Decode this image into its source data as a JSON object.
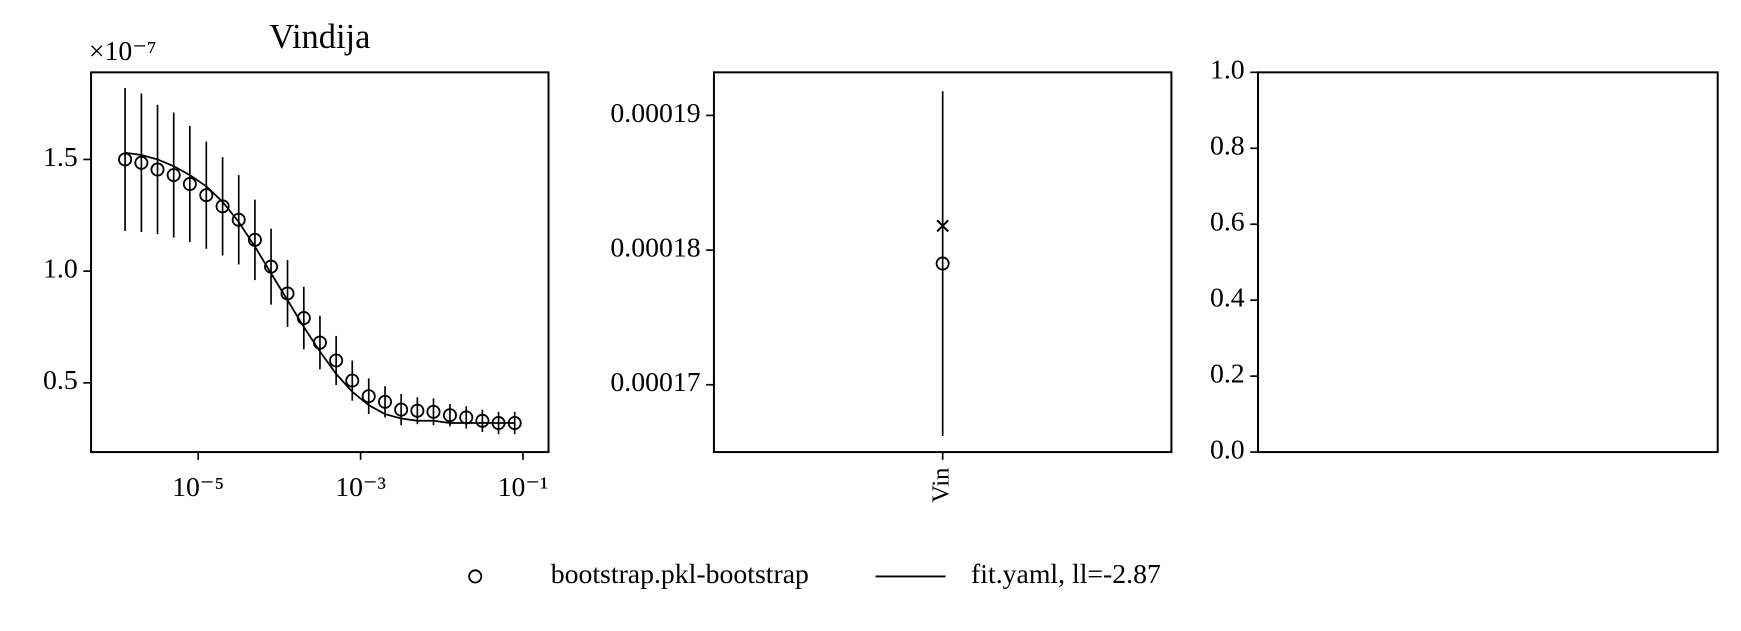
{
  "chart_data": [
    {
      "type": "line",
      "title": "Vindija",
      "offset_label": "×10⁻⁷",
      "xscale": "log",
      "x": [
        1.26e-06,
        2e-06,
        3.16e-06,
        5e-06,
        7.9e-06,
        1.26e-05,
        2e-05,
        3.16e-05,
        5e-05,
        7.9e-05,
        0.000126,
        0.0002,
        0.000316,
        0.0005,
        0.00079,
        0.00126,
        0.002,
        0.00316,
        0.005,
        0.0079,
        0.0126,
        0.02,
        0.0316,
        0.05,
        0.079
      ],
      "series": [
        {
          "name": "bootstrap.pkl-bootstrap",
          "color": "#000000",
          "marker": "o",
          "values": [
            1.5,
            1.485,
            1.455,
            1.43,
            1.39,
            1.34,
            1.29,
            1.23,
            1.14,
            1.02,
            0.9,
            0.79,
            0.68,
            0.6,
            0.51,
            0.44,
            0.415,
            0.38,
            0.375,
            0.37,
            0.355,
            0.345,
            0.33,
            0.32,
            0.32
          ],
          "errors": [
            0.32,
            0.31,
            0.29,
            0.28,
            0.26,
            0.24,
            0.22,
            0.2,
            0.18,
            0.17,
            0.15,
            0.14,
            0.12,
            0.11,
            0.09,
            0.08,
            0.07,
            0.07,
            0.06,
            0.06,
            0.05,
            0.05,
            0.05,
            0.05,
            0.05
          ]
        },
        {
          "name": "fit.yaml, ll=-2.87",
          "color": "#000000",
          "values": [
            1.53,
            1.52,
            1.5,
            1.47,
            1.43,
            1.38,
            1.31,
            1.22,
            1.11,
            0.99,
            0.87,
            0.75,
            0.64,
            0.54,
            0.46,
            0.4,
            0.36,
            0.34,
            0.33,
            0.33,
            0.32,
            0.32,
            0.32,
            0.32,
            0.32
          ]
        }
      ],
      "xlim": [
        4.8e-07,
        0.206
      ],
      "xticks": [
        {
          "value": 1e-05,
          "label": "10⁻⁵"
        },
        {
          "value": 0.001,
          "label": "10⁻³"
        },
        {
          "value": 0.1,
          "label": "10⁻¹"
        }
      ],
      "ylim": [
        0.19,
        1.89
      ],
      "yticks": [
        {
          "value": 0.5,
          "label": "0.5"
        },
        {
          "value": 1,
          "label": "1.0"
        },
        {
          "value": 1.5,
          "label": "1.5"
        }
      ]
    },
    {
      "type": "scatter",
      "categories": [
        "Vin"
      ],
      "series": [
        {
          "color": "#000000",
          "marker": "o",
          "values": [
            0.000179
          ],
          "errors": [
            1.28e-05
          ]
        },
        {
          "color": "#000000",
          "marker": "x",
          "values": [
            0.0001818
          ]
        }
      ],
      "ylim": [
        0.000165,
        0.0001932
      ],
      "yticks": [
        0.00017,
        0.00018,
        0.00019
      ]
    },
    {
      "type": "line",
      "ylim": [
        0,
        1
      ],
      "yticks": [
        {
          "value": 0,
          "label": "0.0"
        },
        {
          "value": 0.2,
          "label": "0.2"
        },
        {
          "value": 0.4,
          "label": "0.4"
        },
        {
          "value": 0.6,
          "label": "0.6"
        },
        {
          "value": 0.8,
          "label": "0.8"
        },
        {
          "value": 1,
          "label": "1.0"
        }
      ]
    }
  ]
}
